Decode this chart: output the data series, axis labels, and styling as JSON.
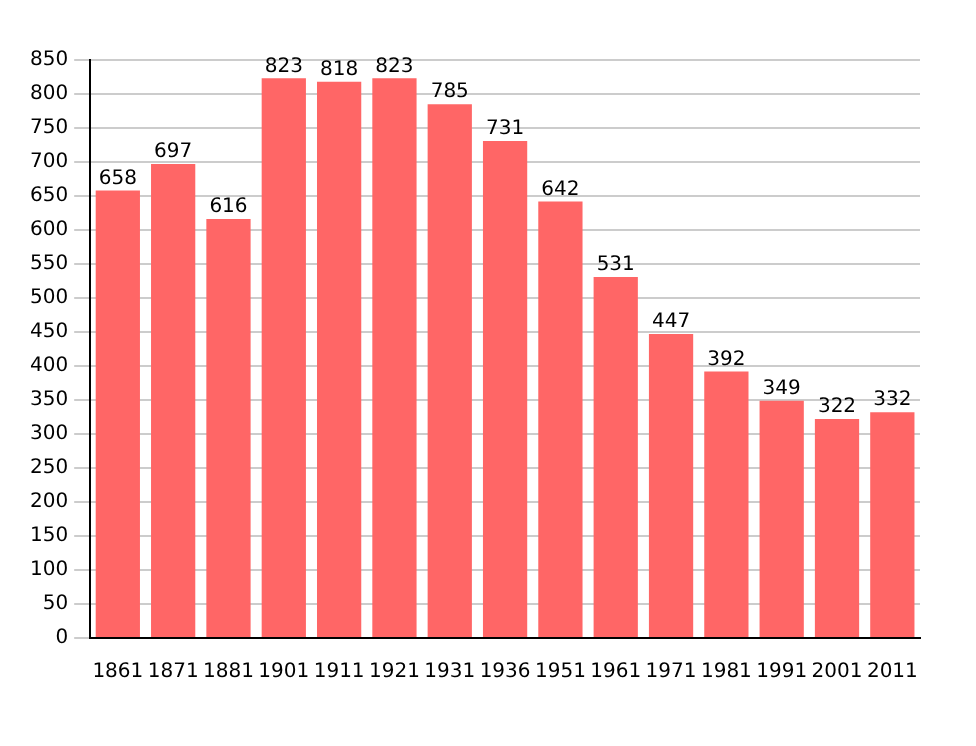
{
  "chart_data": {
    "type": "bar",
    "categories": [
      "1861",
      "1871",
      "1881",
      "1901",
      "1911",
      "1921",
      "1931",
      "1936",
      "1951",
      "1961",
      "1971",
      "1981",
      "1991",
      "2001",
      "2011"
    ],
    "values": [
      658,
      697,
      616,
      823,
      818,
      823,
      785,
      731,
      642,
      531,
      447,
      392,
      349,
      322,
      332
    ],
    "color": "#ff6666",
    "ylim": [
      0,
      850
    ],
    "yticks": [
      0,
      50,
      100,
      150,
      200,
      250,
      300,
      350,
      400,
      450,
      500,
      550,
      600,
      650,
      700,
      750,
      800,
      850
    ],
    "grid": "y",
    "data_labels": true,
    "legend": false
  }
}
